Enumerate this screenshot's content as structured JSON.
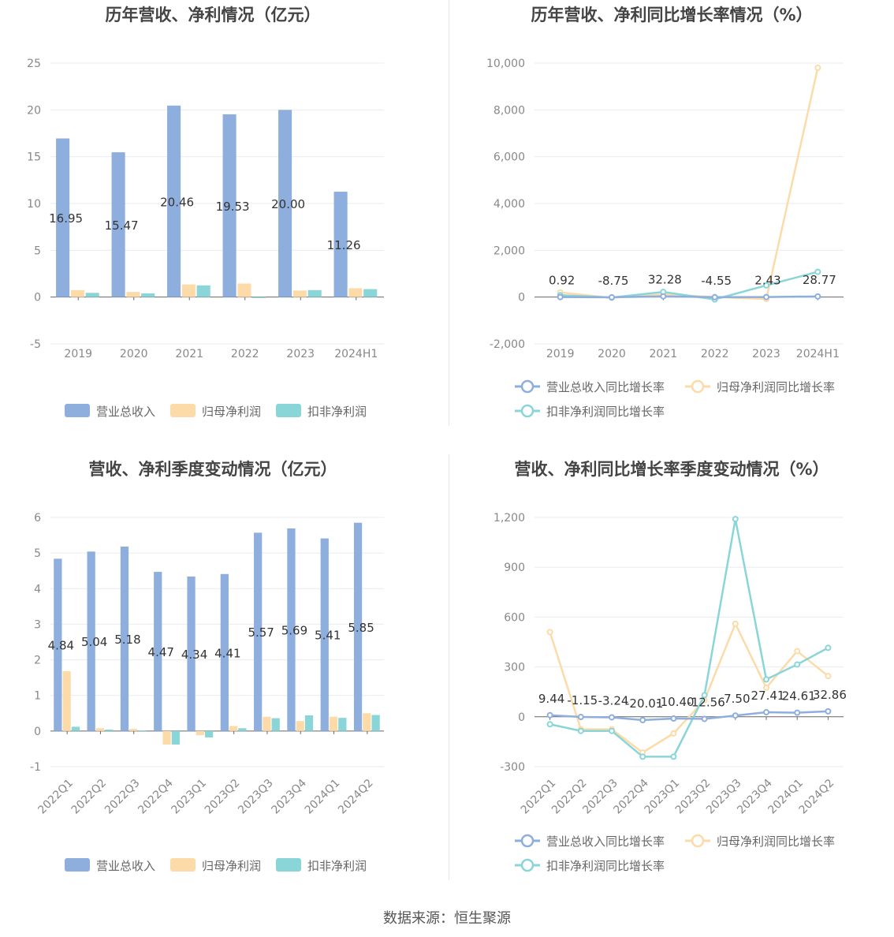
{
  "footer": "数据来源：恒生聚源",
  "colors": {
    "revenue": "#8eaedd",
    "net_profit": "#fcdba9",
    "deducted_profit": "#89d5d8",
    "axis_text": "#888888",
    "title": "#444444",
    "grid": "#e8ebf2",
    "label": "#333333"
  },
  "chart_data": [
    {
      "type": "bar",
      "title": "历年营收、净利情况（亿元）",
      "categories": [
        "2019",
        "2020",
        "2021",
        "2022",
        "2023",
        "2024H1"
      ],
      "ylim": [
        -5,
        25
      ],
      "yticks": [
        -5,
        0,
        5,
        10,
        15,
        20,
        25
      ],
      "grid": true,
      "legend_position": "bottom",
      "series": [
        {
          "name": "营业总收入",
          "values": [
            16.95,
            15.47,
            20.46,
            19.53,
            20.0,
            11.26
          ],
          "labels": [
            "16.95",
            "15.47",
            "20.46",
            "19.53",
            "20.00",
            "11.26"
          ]
        },
        {
          "name": "归母净利润",
          "values": [
            0.75,
            0.55,
            1.35,
            1.45,
            0.7,
            0.95
          ]
        },
        {
          "name": "扣非净利润",
          "values": [
            0.45,
            0.4,
            1.25,
            -0.1,
            0.75,
            0.85
          ]
        }
      ]
    },
    {
      "type": "line",
      "title": "历年营收、净利同比增长率情况（%）",
      "categories": [
        "2019",
        "2020",
        "2021",
        "2022",
        "2023",
        "2024H1"
      ],
      "ylim": [
        -2000,
        10000
      ],
      "yticks": [
        -2000,
        0,
        2000,
        4000,
        6000,
        8000,
        10000
      ],
      "ytick_labels": [
        "-2,000",
        "0",
        "2,000",
        "4,000",
        "6,000",
        "8,000",
        "10,000"
      ],
      "grid": true,
      "legend_position": "bottom",
      "series": [
        {
          "name": "营业总收入同比增长率",
          "values": [
            0.92,
            -8.75,
            32.28,
            -4.55,
            2.43,
            28.77
          ],
          "labels": [
            "0.92",
            "-8.75",
            "32.28",
            "-4.55",
            "2.43",
            "28.77"
          ]
        },
        {
          "name": "归母净利润同比增长率",
          "values": [
            200,
            -30,
            120,
            0,
            -80,
            9800
          ]
        },
        {
          "name": "扣非净利润同比增长率",
          "values": [
            80,
            -20,
            220,
            -100,
            500,
            1080
          ]
        }
      ]
    },
    {
      "type": "bar",
      "title": "营收、净利季度变动情况（亿元）",
      "categories": [
        "2022Q1",
        "2022Q2",
        "2022Q3",
        "2022Q4",
        "2023Q1",
        "2023Q2",
        "2023Q3",
        "2023Q4",
        "2024Q1",
        "2024Q2"
      ],
      "ylim": [
        -1,
        6
      ],
      "yticks": [
        -1,
        0,
        1,
        2,
        3,
        4,
        5,
        6
      ],
      "grid": true,
      "legend_position": "bottom",
      "series": [
        {
          "name": "营业总收入",
          "values": [
            4.84,
            5.04,
            5.18,
            4.47,
            4.34,
            4.41,
            5.57,
            5.69,
            5.41,
            5.85
          ],
          "labels": [
            "4.84",
            "5.04",
            "5.18",
            "4.47",
            "4.34",
            "4.41",
            "5.57",
            "5.69",
            "5.41",
            "5.85"
          ]
        },
        {
          "name": "归母净利润",
          "values": [
            1.68,
            0.08,
            0.06,
            -0.38,
            -0.12,
            0.14,
            0.4,
            0.28,
            0.4,
            0.5
          ]
        },
        {
          "name": "扣非净利润",
          "values": [
            0.12,
            0.04,
            0.02,
            -0.38,
            -0.18,
            0.08,
            0.36,
            0.44,
            0.37,
            0.45
          ]
        }
      ]
    },
    {
      "type": "line",
      "title": "营收、净利同比增长率季度变动情况（%）",
      "categories": [
        "2022Q1",
        "2022Q2",
        "2022Q3",
        "2022Q4",
        "2023Q1",
        "2023Q2",
        "2023Q3",
        "2023Q4",
        "2024Q1",
        "2024Q2"
      ],
      "ylim": [
        -300,
        1200
      ],
      "yticks": [
        -300,
        0,
        300,
        600,
        900,
        1200
      ],
      "ytick_labels": [
        "-300",
        "0",
        "300",
        "600",
        "900",
        "1,200"
      ],
      "grid": true,
      "legend_position": "bottom",
      "series": [
        {
          "name": "营业总收入同比增长率",
          "values": [
            9.44,
            -1.15,
            -3.24,
            -20.01,
            -10.4,
            -12.56,
            7.5,
            27.41,
            24.61,
            32.86
          ],
          "labels": [
            "9.44",
            "-1.15",
            "-3.24",
            "-20.01",
            "-10.40",
            "-12.56",
            "7.50",
            "27.41",
            "24.61",
            "32.86"
          ]
        },
        {
          "name": "归母净利润同比增长率",
          "values": [
            510,
            -75,
            -75,
            -215,
            -100,
            100,
            560,
            175,
            395,
            245
          ]
        },
        {
          "name": "扣非净利润同比增长率",
          "values": [
            -45,
            -85,
            -85,
            -240,
            -240,
            130,
            1190,
            225,
            315,
            415
          ]
        }
      ]
    }
  ]
}
